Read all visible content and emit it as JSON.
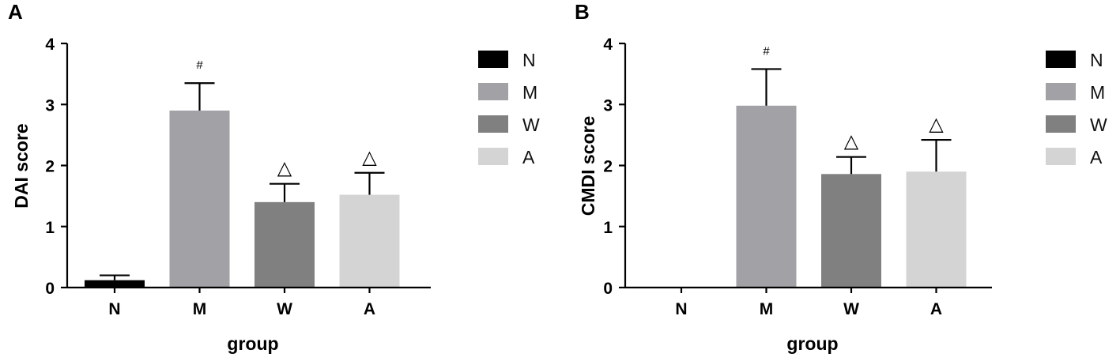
{
  "chart_data": [
    {
      "type": "bar",
      "panel_label": "A",
      "ylabel": "DAI score",
      "xlabel": "group",
      "ylim": [
        0,
        4
      ],
      "yticks": [
        0,
        1,
        2,
        3,
        4
      ],
      "categories": [
        "N",
        "M",
        "W",
        "A"
      ],
      "values": [
        0.12,
        2.9,
        1.4,
        1.52
      ],
      "errors": [
        0.08,
        0.45,
        0.3,
        0.36
      ],
      "annotations": [
        "",
        "#",
        "△",
        "△"
      ],
      "colors": [
        "#000000",
        "#a2a2a6",
        "#808080",
        "#d4d4d4"
      ],
      "legend": {
        "position": "right",
        "entries": [
          {
            "label": "N",
            "color": "#000000"
          },
          {
            "label": "M",
            "color": "#a2a2a6"
          },
          {
            "label": "W",
            "color": "#808080"
          },
          {
            "label": "A",
            "color": "#d4d4d4"
          }
        ]
      },
      "grid": false
    },
    {
      "type": "bar",
      "panel_label": "B",
      "ylabel": "CMDI score",
      "xlabel": "group",
      "ylim": [
        0,
        4
      ],
      "yticks": [
        0,
        1,
        2,
        3,
        4
      ],
      "categories": [
        "N",
        "M",
        "W",
        "A"
      ],
      "values": [
        0,
        2.98,
        1.86,
        1.9
      ],
      "errors": [
        0,
        0.6,
        0.28,
        0.52
      ],
      "annotations": [
        "",
        "#",
        "△",
        "△"
      ],
      "colors": [
        "#000000",
        "#a2a2a6",
        "#808080",
        "#d4d4d4"
      ],
      "legend": {
        "position": "right",
        "entries": [
          {
            "label": "N",
            "color": "#000000"
          },
          {
            "label": "M",
            "color": "#a2a2a6"
          },
          {
            "label": "W",
            "color": "#808080"
          },
          {
            "label": "A",
            "color": "#d4d4d4"
          }
        ]
      },
      "grid": false
    }
  ]
}
